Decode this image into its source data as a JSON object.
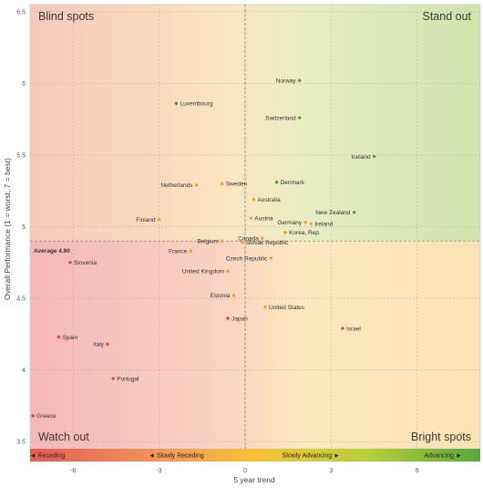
{
  "chart_data": {
    "type": "scatter",
    "xlabel": "5 year trend",
    "ylabel": "Overall Performance (1 = worst, 7 = best)",
    "xlim": [
      -7.5,
      8.2
    ],
    "ylim": [
      3.45,
      6.55
    ],
    "x_ticks": [
      -6,
      -3,
      0,
      3,
      6
    ],
    "y_ticks": [
      3.5,
      4,
      4.5,
      5,
      5.5,
      6,
      6.5
    ],
    "average": {
      "label": "Average 4.90",
      "value": 4.9
    },
    "x_reference": 0,
    "grid": true,
    "quadrants": {
      "top_left": "Blind spots",
      "top_right": "Stand out",
      "bottom_left": "Watch out",
      "bottom_right": "Bright spots"
    },
    "trend_band": [
      {
        "label": "Receding",
        "arrow": "left",
        "x": -6.9
      },
      {
        "label": "Slowly Receding",
        "arrow": "left",
        "x": -2.4
      },
      {
        "label": "Slowly Advancing",
        "arrow": "right",
        "x": 2.3
      },
      {
        "label": "Advancing",
        "arrow": "right",
        "x": 6.9
      }
    ],
    "colors": {
      "green": "#4ba03a",
      "orange": "#f0a028",
      "red": "#d64a4a"
    },
    "points": [
      {
        "name": "Norway",
        "x": 1.9,
        "y": 6.02,
        "color": "green",
        "side": "left"
      },
      {
        "name": "Luxembourg",
        "x": -2.4,
        "y": 5.86,
        "color": "green",
        "side": "right"
      },
      {
        "name": "Switzerland",
        "x": 1.9,
        "y": 5.76,
        "color": "green",
        "side": "left"
      },
      {
        "name": "Iceland",
        "x": 4.5,
        "y": 5.49,
        "color": "green",
        "side": "left"
      },
      {
        "name": "Denmark",
        "x": 1.1,
        "y": 5.31,
        "color": "green",
        "side": "right"
      },
      {
        "name": "Netherlands",
        "x": -1.7,
        "y": 5.29,
        "color": "orange",
        "side": "left"
      },
      {
        "name": "Sweden",
        "x": -0.8,
        "y": 5.3,
        "color": "orange",
        "side": "right"
      },
      {
        "name": "Australia",
        "x": 0.3,
        "y": 5.19,
        "color": "orange",
        "side": "right"
      },
      {
        "name": "New Zealand",
        "x": 3.8,
        "y": 5.1,
        "color": "green",
        "side": "left"
      },
      {
        "name": "Finland",
        "x": -3.0,
        "y": 5.05,
        "color": "orange",
        "side": "left"
      },
      {
        "name": "Austria",
        "x": 0.2,
        "y": 5.06,
        "color": "orange",
        "side": "right"
      },
      {
        "name": "Germany",
        "x": 2.1,
        "y": 5.03,
        "color": "orange",
        "side": "left"
      },
      {
        "name": "Ireland",
        "x": 2.3,
        "y": 5.02,
        "color": "orange",
        "side": "right"
      },
      {
        "name": "Korea, Rep.",
        "x": 1.4,
        "y": 4.96,
        "color": "orange",
        "side": "right"
      },
      {
        "name": "Canada",
        "x": 0.6,
        "y": 4.92,
        "color": "orange",
        "side": "left"
      },
      {
        "name": "Belgium",
        "x": -0.8,
        "y": 4.9,
        "color": "orange",
        "side": "left"
      },
      {
        "name": "Slovak Republic",
        "x": -0.1,
        "y": 4.89,
        "color": "orange",
        "side": "right"
      },
      {
        "name": "France",
        "x": -1.9,
        "y": 4.83,
        "color": "orange",
        "side": "left"
      },
      {
        "name": "Czech Republic",
        "x": 0.9,
        "y": 4.78,
        "color": "orange",
        "side": "left"
      },
      {
        "name": "Slovenia",
        "x": -6.1,
        "y": 4.75,
        "color": "red",
        "side": "right"
      },
      {
        "name": "United Kingdom",
        "x": -0.6,
        "y": 4.69,
        "color": "orange",
        "side": "left"
      },
      {
        "name": "Estonia",
        "x": -0.4,
        "y": 4.52,
        "color": "orange",
        "side": "left"
      },
      {
        "name": "United States",
        "x": 0.7,
        "y": 4.44,
        "color": "orange",
        "side": "right"
      },
      {
        "name": "Japan",
        "x": -0.6,
        "y": 4.36,
        "color": "red",
        "side": "right"
      },
      {
        "name": "Israel",
        "x": 3.4,
        "y": 4.29,
        "color": "red",
        "side": "right"
      },
      {
        "name": "Spain",
        "x": -6.5,
        "y": 4.23,
        "color": "red",
        "side": "right"
      },
      {
        "name": "Italy",
        "x": -4.8,
        "y": 4.18,
        "color": "red",
        "side": "left"
      },
      {
        "name": "Portugal",
        "x": -4.6,
        "y": 3.94,
        "color": "red",
        "side": "right"
      },
      {
        "name": "Greece",
        "x": -7.4,
        "y": 3.68,
        "color": "red",
        "side": "right"
      }
    ]
  }
}
